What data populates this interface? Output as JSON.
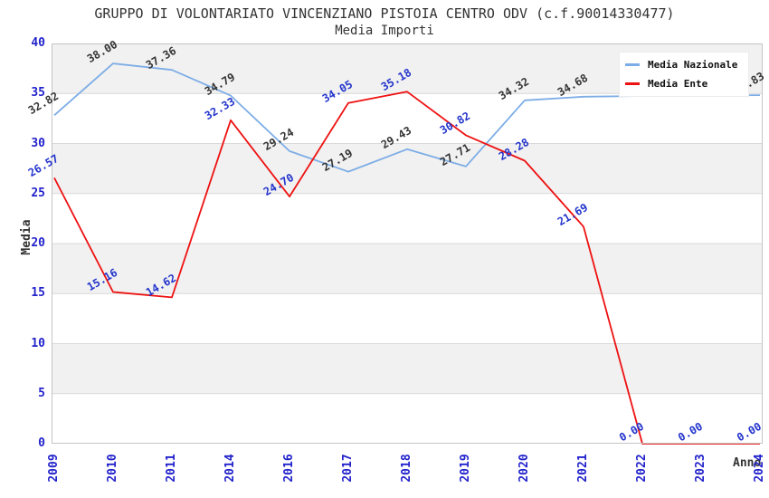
{
  "header": {
    "title": "GRUPPO DI VOLONTARIATO VINCENZIANO PISTOIA CENTRO ODV (c.f.90014330477)",
    "subtitle": "Media Importi"
  },
  "colors": {
    "tick_label": "#2222cc",
    "band_gray": "#f1f1f1",
    "band_white": "#ffffff",
    "gridline": "#d9d9d9",
    "plot_border": "#c4c4c4",
    "text": "#333333"
  },
  "chart_data": {
    "type": "line",
    "title": "GRUPPO DI VOLONTARIATO VINCENZIANO PISTOIA CENTRO ODV (c.f.90014330477)",
    "subtitle": "Media Importi",
    "xlabel": "Anno",
    "ylabel": "Media",
    "ylim": [
      0,
      40
    ],
    "ytick_step": 5,
    "grid": "horizontal-bands",
    "legend_position": "top-right",
    "categories": [
      "2009",
      "2010",
      "2011",
      "2014",
      "2016",
      "2017",
      "2018",
      "2019",
      "2020",
      "2021",
      "2022",
      "2023",
      "2024"
    ],
    "series": [
      {
        "name": "Media Nazionale",
        "color": "#7dade6",
        "label_color": "#333333",
        "values": [
          32.82,
          38.0,
          37.36,
          34.79,
          29.24,
          27.19,
          29.43,
          27.71,
          34.32,
          34.68,
          34.75,
          34.8,
          34.83
        ],
        "point_labels": [
          "32.82",
          "38.00",
          "37.36",
          "34.79",
          "29.24",
          "27.19",
          "29.43",
          "27.71",
          "34.32",
          "34.68",
          null,
          null,
          "34.83"
        ]
      },
      {
        "name": "Media Ente",
        "color": "#ee1111",
        "label_color": "#2233cc",
        "values": [
          26.57,
          15.16,
          14.62,
          32.33,
          24.7,
          34.05,
          35.18,
          30.82,
          28.28,
          21.69,
          0.0,
          0.0,
          0.0
        ],
        "point_labels": [
          "26.57",
          "15.16",
          "14.62",
          "32.33",
          "24.70",
          "34.05",
          "35.18",
          "30.82",
          "28.28",
          "21.69",
          "0.00",
          "0.00",
          "0.00"
        ]
      }
    ]
  }
}
